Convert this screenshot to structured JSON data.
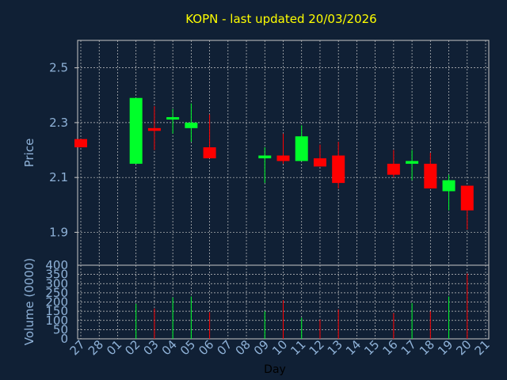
{
  "chart_data": {
    "type": "candlestick",
    "title": "KOPN - last updated 20/03/2026",
    "xlabel": "Day",
    "price_panel": {
      "ylabel": "Price",
      "ylim": [
        1.78,
        2.6
      ],
      "yticks": [
        "1.9",
        "2.1",
        "2.3",
        "2.5"
      ],
      "grid": true
    },
    "volume_panel": {
      "ylabel": "Volume (0000)",
      "ylim": [
        0,
        400
      ],
      "yticks": [
        "0",
        "50",
        "100",
        "150",
        "200",
        "250",
        "300",
        "350",
        "400"
      ],
      "grid": true
    },
    "x_ticks": [
      "27",
      "28",
      "01",
      "02",
      "03",
      "04",
      "05",
      "06",
      "07",
      "08",
      "09",
      "10",
      "11",
      "12",
      "13",
      "14",
      "15",
      "16",
      "17",
      "18",
      "19",
      "20",
      "21"
    ],
    "up_color": "#00ff2a",
    "down_color": "#ff0000",
    "candles": [
      {
        "day": "27",
        "open": 2.24,
        "high": 2.24,
        "low": 2.21,
        "close": 2.21,
        "volume": 0
      },
      {
        "day": "02",
        "open": 2.15,
        "high": 2.39,
        "low": 2.15,
        "close": 2.39,
        "volume": 190
      },
      {
        "day": "03",
        "open": 2.28,
        "high": 2.36,
        "low": 2.2,
        "close": 2.27,
        "volume": 165
      },
      {
        "day": "04",
        "open": 2.32,
        "high": 2.35,
        "low": 2.26,
        "close": 2.32,
        "volume": 225
      },
      {
        "day": "05",
        "open": 2.28,
        "high": 2.37,
        "low": 2.23,
        "close": 2.3,
        "volume": 230
      },
      {
        "day": "06",
        "open": 2.21,
        "high": 2.33,
        "low": 2.17,
        "close": 2.17,
        "volume": 145
      },
      {
        "day": "09",
        "open": 2.17,
        "high": 2.21,
        "low": 2.08,
        "close": 2.18,
        "volume": 150
      },
      {
        "day": "10",
        "open": 2.18,
        "high": 2.26,
        "low": 2.15,
        "close": 2.16,
        "volume": 210
      },
      {
        "day": "11",
        "open": 2.16,
        "high": 2.29,
        "low": 2.16,
        "close": 2.25,
        "volume": 115
      },
      {
        "day": "12",
        "open": 2.17,
        "high": 2.22,
        "low": 2.14,
        "close": 2.14,
        "volume": 105
      },
      {
        "day": "13",
        "open": 2.18,
        "high": 2.23,
        "low": 2.06,
        "close": 2.08,
        "volume": 160
      },
      {
        "day": "16",
        "open": 2.15,
        "high": 2.2,
        "low": 2.1,
        "close": 2.11,
        "volume": 140
      },
      {
        "day": "17",
        "open": 2.15,
        "high": 2.2,
        "low": 2.09,
        "close": 2.16,
        "volume": 195
      },
      {
        "day": "18",
        "open": 2.15,
        "high": 2.19,
        "low": 2.06,
        "close": 2.06,
        "volume": 150
      },
      {
        "day": "19",
        "open": 2.05,
        "high": 2.11,
        "low": 1.98,
        "close": 2.09,
        "volume": 230
      },
      {
        "day": "20",
        "open": 2.07,
        "high": 2.07,
        "low": 1.91,
        "close": 1.98,
        "volume": 355
      }
    ]
  }
}
